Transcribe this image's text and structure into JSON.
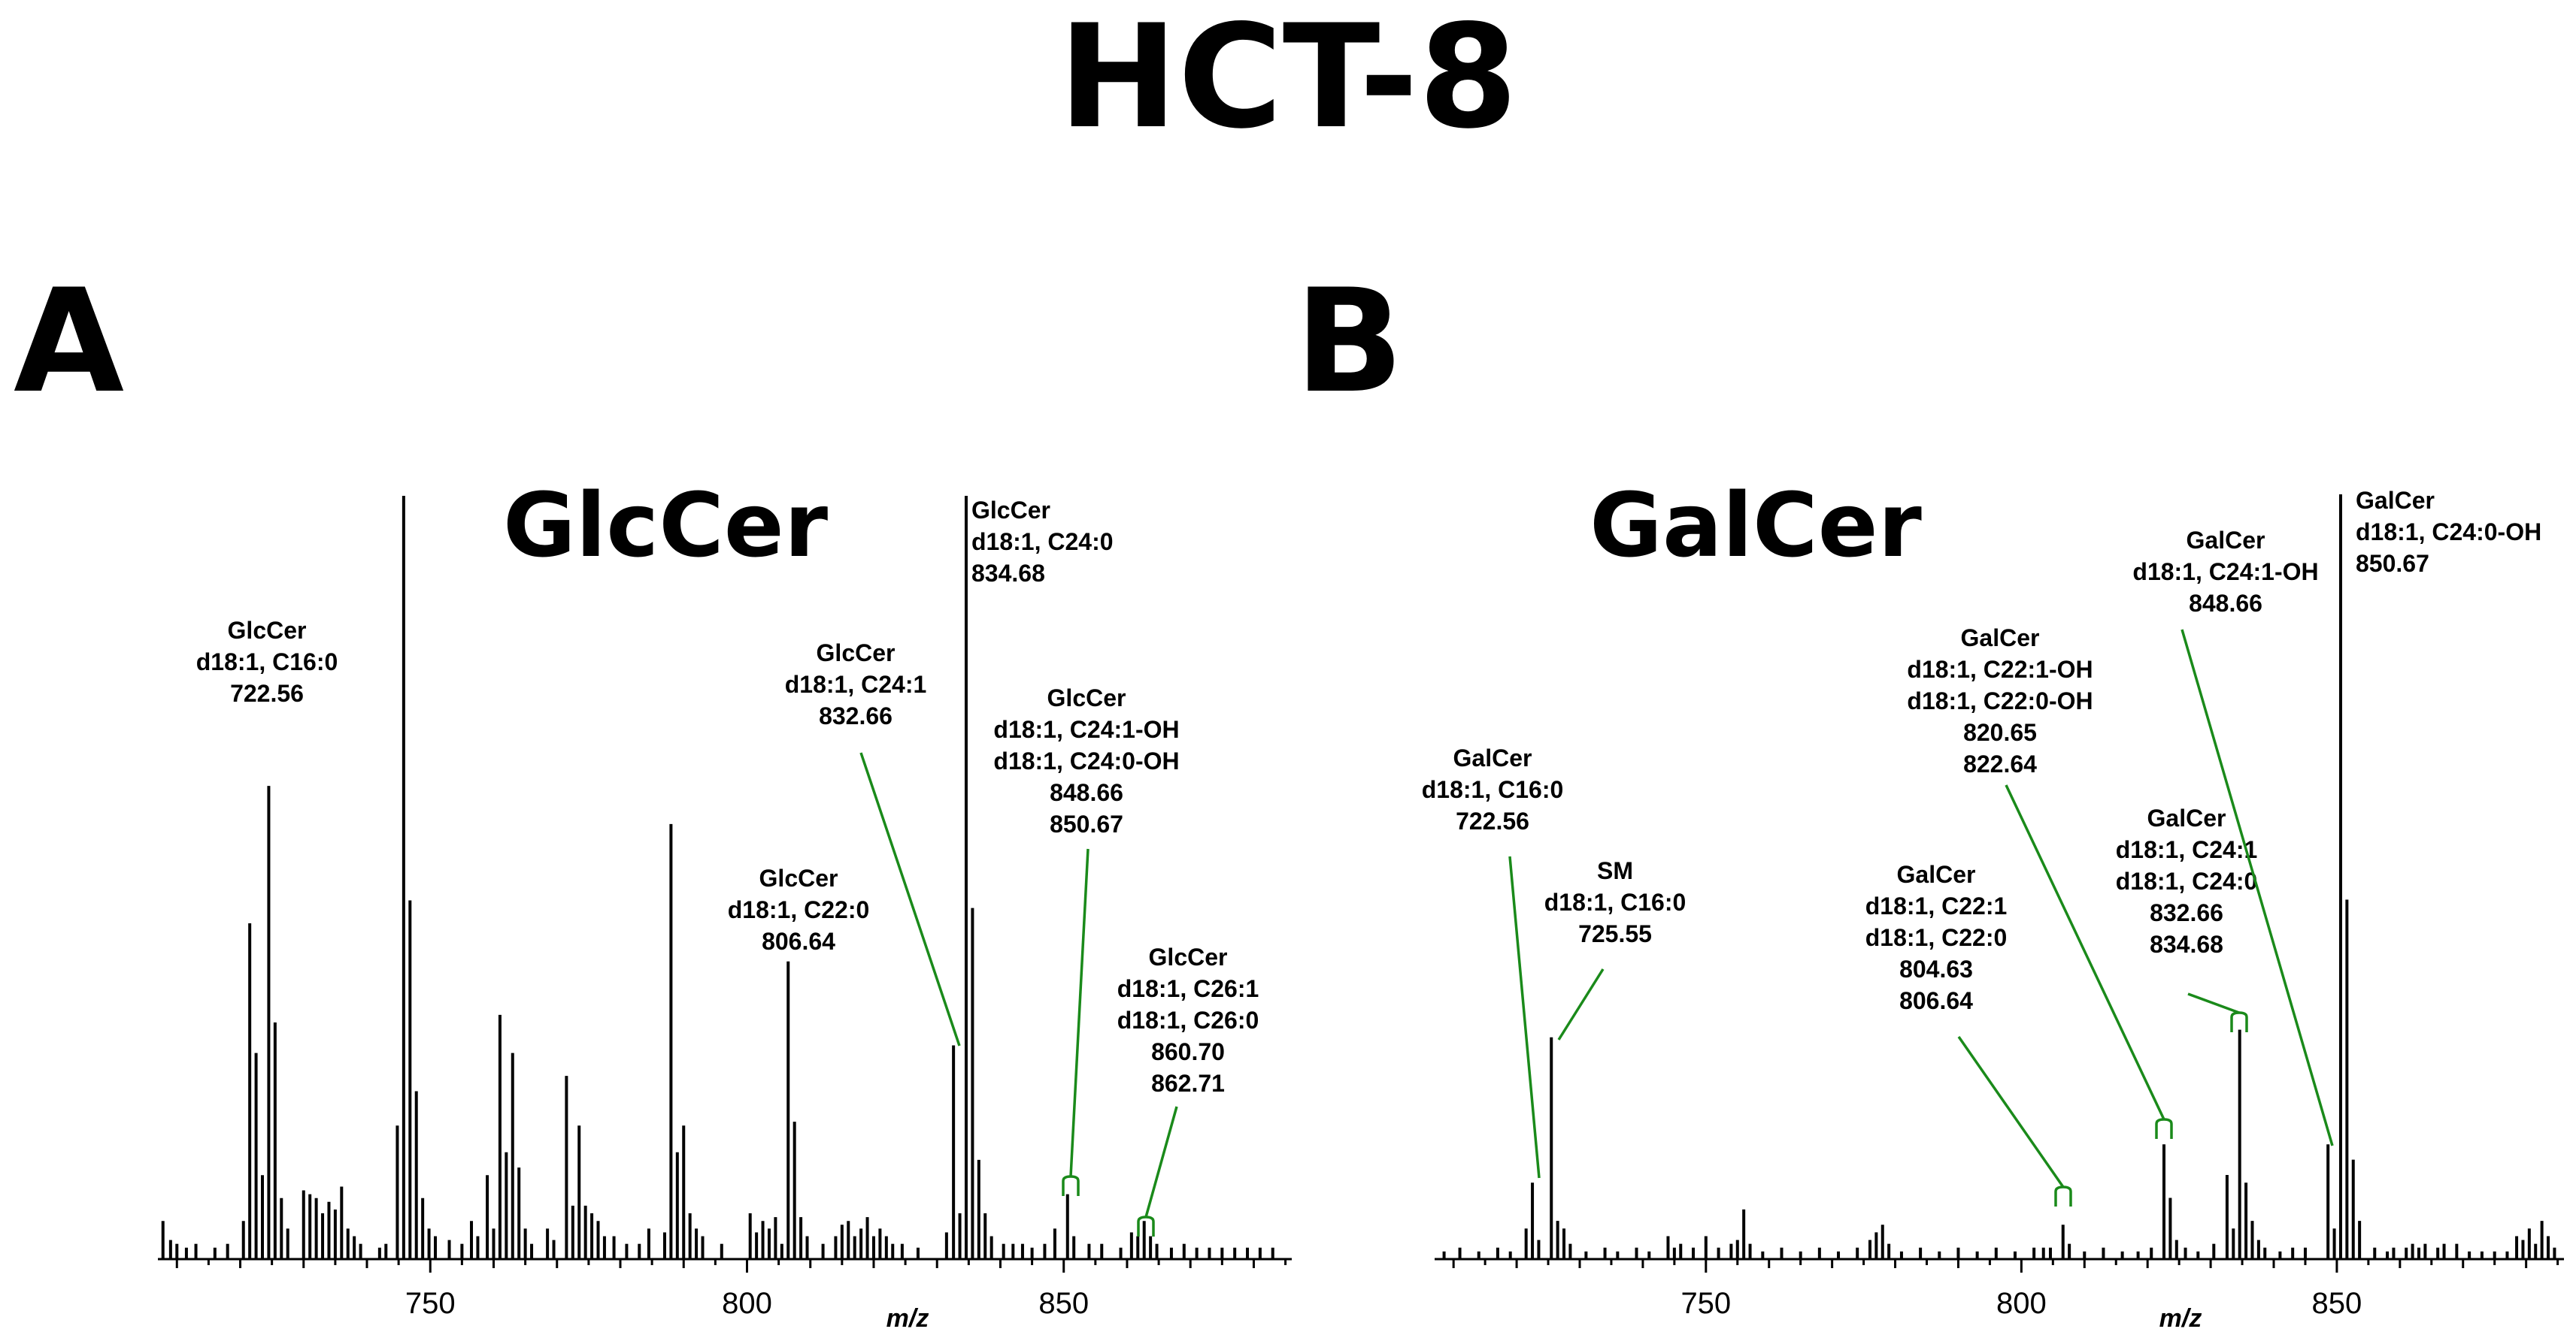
{
  "figure_title": "HCT-8",
  "colors": {
    "peaks": "#000000",
    "leader_lines": "#1a8a1a"
  },
  "chart_data": [
    {
      "panel_letter": "A",
      "title": "GlcCer",
      "type": "bar",
      "xlabel": "m/z",
      "ylabel": "",
      "xlim": [
        707,
        886
      ],
      "ylim": [
        0,
        100
      ],
      "xticks": [
        750,
        800,
        850
      ],
      "peaks": [
        [
          707.8,
          5
        ],
        [
          709,
          2.5
        ],
        [
          710,
          2
        ],
        [
          711.5,
          1.5
        ],
        [
          713,
          2
        ],
        [
          716,
          1.5
        ],
        [
          718,
          2
        ],
        [
          720.5,
          5
        ],
        [
          721.5,
          44
        ],
        [
          722.5,
          27
        ],
        [
          723.5,
          11
        ],
        [
          724.5,
          62
        ],
        [
          725.5,
          31
        ],
        [
          726.5,
          8
        ],
        [
          727.5,
          4
        ],
        [
          730,
          9
        ],
        [
          731,
          8.5
        ],
        [
          732,
          8
        ],
        [
          733,
          6
        ],
        [
          734,
          7.5
        ],
        [
          735,
          6.5
        ],
        [
          736,
          9.5
        ],
        [
          737,
          4
        ],
        [
          738,
          3
        ],
        [
          739,
          2
        ],
        [
          742,
          1.5
        ],
        [
          743,
          2
        ],
        [
          744.8,
          17.5
        ],
        [
          745.8,
          100
        ],
        [
          746.8,
          47
        ],
        [
          747.8,
          22
        ],
        [
          748.8,
          8
        ],
        [
          749.8,
          4
        ],
        [
          750.8,
          3
        ],
        [
          753,
          2.5
        ],
        [
          755,
          2
        ],
        [
          756.5,
          5
        ],
        [
          757.5,
          3
        ],
        [
          759,
          11
        ],
        [
          760,
          4
        ],
        [
          761,
          32
        ],
        [
          762,
          14
        ],
        [
          763,
          27
        ],
        [
          764,
          12
        ],
        [
          765,
          4
        ],
        [
          766,
          2
        ],
        [
          768.5,
          4
        ],
        [
          769.5,
          2.5
        ],
        [
          771.5,
          24
        ],
        [
          772.5,
          7
        ],
        [
          773.5,
          17.5
        ],
        [
          774.5,
          7
        ],
        [
          775.5,
          6
        ],
        [
          776.5,
          5
        ],
        [
          777.5,
          3
        ],
        [
          779,
          3
        ],
        [
          781,
          2
        ],
        [
          783,
          2
        ],
        [
          784.5,
          4
        ],
        [
          787,
          3.5
        ],
        [
          788,
          57
        ],
        [
          789,
          14
        ],
        [
          790,
          17.5
        ],
        [
          791,
          6
        ],
        [
          792,
          4
        ],
        [
          793,
          3
        ],
        [
          796,
          2
        ],
        [
          800.5,
          6
        ],
        [
          801.5,
          3.5
        ],
        [
          802.5,
          5
        ],
        [
          803.5,
          4
        ],
        [
          804.5,
          5.5
        ],
        [
          805.5,
          2
        ],
        [
          806.5,
          39
        ],
        [
          807.5,
          18
        ],
        [
          808.5,
          5.5
        ],
        [
          809.5,
          3
        ],
        [
          812,
          2
        ],
        [
          814,
          3
        ],
        [
          815,
          4.5
        ],
        [
          816,
          5
        ],
        [
          817,
          3
        ],
        [
          818,
          4
        ],
        [
          819,
          5.5
        ],
        [
          820,
          3
        ],
        [
          821,
          4
        ],
        [
          822,
          3
        ],
        [
          823,
          2
        ],
        [
          824.5,
          2
        ],
        [
          827,
          1.5
        ],
        [
          831.5,
          3.5
        ],
        [
          832.6,
          28
        ],
        [
          833.6,
          6
        ],
        [
          834.6,
          100
        ],
        [
          835.6,
          46
        ],
        [
          836.6,
          13
        ],
        [
          837.6,
          6
        ],
        [
          838.6,
          3
        ],
        [
          840.5,
          2
        ],
        [
          842,
          2
        ],
        [
          843.5,
          2
        ],
        [
          845,
          1.5
        ],
        [
          847,
          2
        ],
        [
          848.6,
          4
        ],
        [
          850.6,
          8.5
        ],
        [
          851.6,
          3
        ],
        [
          854,
          2
        ],
        [
          856,
          2
        ],
        [
          859,
          1.5
        ],
        [
          860.7,
          3.5
        ],
        [
          861.7,
          3
        ],
        [
          862.7,
          5
        ],
        [
          863.7,
          3
        ],
        [
          864.7,
          2
        ],
        [
          867,
          1.5
        ],
        [
          869,
          2
        ],
        [
          871,
          1.5
        ],
        [
          873,
          1.5
        ],
        [
          875,
          1.5
        ],
        [
          877,
          1.5
        ],
        [
          879,
          1.5
        ],
        [
          881,
          1.5
        ],
        [
          883,
          1.5
        ]
      ],
      "annotations": [
        {
          "lines": [
            "GlcCer",
            "d18:1, C16:0",
            "722.56"
          ],
          "points_to": 722.56
        },
        {
          "lines": [
            "GlcCer",
            "d18:1, C22:0",
            "806.64"
          ],
          "points_to": 806.64
        },
        {
          "lines": [
            "GlcCer",
            "d18:1, C24:1",
            "832.66"
          ],
          "points_to": 832.66
        },
        {
          "lines": [
            "GlcCer",
            "d18:1, C24:0",
            "834.68"
          ],
          "points_to": 834.68
        },
        {
          "lines": [
            "GlcCer",
            "d18:1, C24:1-OH",
            "d18:1, C24:0-OH",
            "848.66",
            "850.67"
          ],
          "points_to": [
            848.66,
            850.67
          ]
        },
        {
          "lines": [
            "GlcCer",
            "d18:1, C26:1",
            "d18:1, C26:0",
            "860.70",
            "862.71"
          ],
          "points_to": [
            860.7,
            862.71
          ]
        }
      ]
    },
    {
      "panel_letter": "B",
      "title": "GalCer",
      "type": "bar",
      "xlabel": "m/z",
      "ylabel": "",
      "xlim": [
        707,
        886
      ],
      "ylim": [
        0,
        100
      ],
      "xticks": [
        750,
        800,
        850
      ],
      "peaks": [
        [
          708.5,
          1
        ],
        [
          711,
          1.5
        ],
        [
          714,
          1
        ],
        [
          717,
          1.5
        ],
        [
          719,
          1
        ],
        [
          721.5,
          4
        ],
        [
          722.5,
          10
        ],
        [
          723.5,
          2.5
        ],
        [
          725.5,
          29
        ],
        [
          726.5,
          5
        ],
        [
          727.5,
          4
        ],
        [
          728.5,
          2
        ],
        [
          731,
          1
        ],
        [
          734,
          1.5
        ],
        [
          736,
          1
        ],
        [
          739,
          1.5
        ],
        [
          741,
          1
        ],
        [
          744,
          3
        ],
        [
          745,
          1.5
        ],
        [
          746,
          2
        ],
        [
          748,
          1.5
        ],
        [
          750,
          3
        ],
        [
          752,
          1.5
        ],
        [
          754,
          2
        ],
        [
          755,
          2.5
        ],
        [
          756,
          6.5
        ],
        [
          757,
          2
        ],
        [
          759,
          1
        ],
        [
          762,
          1.5
        ],
        [
          765,
          1
        ],
        [
          768,
          1.5
        ],
        [
          771,
          1
        ],
        [
          774,
          1.5
        ],
        [
          776,
          2.5
        ],
        [
          777,
          3.5
        ],
        [
          778,
          4.5
        ],
        [
          779,
          2
        ],
        [
          781,
          1
        ],
        [
          784,
          1.5
        ],
        [
          787,
          1
        ],
        [
          790,
          1.5
        ],
        [
          793,
          1
        ],
        [
          796,
          1.5
        ],
        [
          799,
          1
        ],
        [
          802,
          1.5
        ],
        [
          803.5,
          1.5
        ],
        [
          804.6,
          1.5
        ],
        [
          806.6,
          4.5
        ],
        [
          807.6,
          2
        ],
        [
          810,
          1
        ],
        [
          813,
          1.5
        ],
        [
          816,
          1
        ],
        [
          818.5,
          1
        ],
        [
          820.6,
          1.5
        ],
        [
          822.6,
          15
        ],
        [
          823.6,
          8
        ],
        [
          824.6,
          2.5
        ],
        [
          826,
          1.5
        ],
        [
          828,
          1
        ],
        [
          830.5,
          2
        ],
        [
          832.6,
          11
        ],
        [
          833.6,
          4
        ],
        [
          834.6,
          30
        ],
        [
          835.6,
          10
        ],
        [
          836.6,
          5
        ],
        [
          837.6,
          2.5
        ],
        [
          838.6,
          1.5
        ],
        [
          841,
          1
        ],
        [
          843,
          1.5
        ],
        [
          845,
          1.5
        ],
        [
          848.6,
          15
        ],
        [
          849.6,
          4
        ],
        [
          850.6,
          100
        ],
        [
          851.6,
          47
        ],
        [
          852.6,
          13
        ],
        [
          853.6,
          5
        ],
        [
          856,
          1.5
        ],
        [
          858,
          1
        ],
        [
          859,
          1.5
        ],
        [
          861,
          1.5
        ],
        [
          862,
          2
        ],
        [
          863,
          1.5
        ],
        [
          864,
          2
        ],
        [
          866,
          1.5
        ],
        [
          867,
          2
        ],
        [
          869,
          2
        ],
        [
          871,
          1
        ],
        [
          873,
          1
        ],
        [
          875,
          1
        ],
        [
          877,
          1
        ],
        [
          878.5,
          3
        ],
        [
          879.5,
          2.5
        ],
        [
          880.5,
          4
        ],
        [
          881.5,
          2
        ],
        [
          882.5,
          5
        ],
        [
          883.5,
          3
        ],
        [
          884.5,
          1.5
        ]
      ],
      "annotations": [
        {
          "lines": [
            "GalCer",
            "d18:1, C16:0",
            "722.56"
          ],
          "points_to": 722.56
        },
        {
          "lines": [
            "SM",
            "d18:1, C16:0",
            "725.55"
          ],
          "points_to": 725.55
        },
        {
          "lines": [
            "GalCer",
            "d18:1, C22:1",
            "d18:1, C22:0",
            "804.63",
            "806.64"
          ],
          "points_to": [
            804.63,
            806.64
          ]
        },
        {
          "lines": [
            "GalCer",
            "d18:1, C22:1-OH",
            "d18:1, C22:0-OH",
            "820.65",
            "822.64"
          ],
          "points_to": [
            820.65,
            822.64
          ]
        },
        {
          "lines": [
            "GalCer",
            "d18:1, C24:1",
            "d18:1, C24:0",
            "832.66",
            "834.68"
          ],
          "points_to": [
            832.66,
            834.68
          ]
        },
        {
          "lines": [
            "GalCer",
            "d18:1, C24:1-OH",
            "848.66"
          ],
          "points_to": 848.66
        },
        {
          "lines": [
            "GalCer",
            "d18:1, C24:0-OH",
            "850.67"
          ],
          "points_to": 850.67
        }
      ]
    }
  ]
}
